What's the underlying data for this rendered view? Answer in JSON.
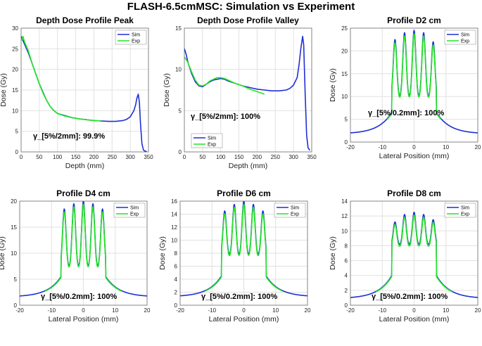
{
  "suptitle": "FLASH-6.5cmMSC: Simulation vs Experiment",
  "colors": {
    "sim": "#1f2fd6",
    "exp": "#22e622"
  },
  "chart_data": [
    {
      "type": "line",
      "title": "Depth Dose Profile Peak",
      "xlabel": "Depth (mm)",
      "ylabel": "Dose (Gy)",
      "xlim": [
        0,
        350
      ],
      "ylim": [
        0,
        30
      ],
      "xticks": [
        0,
        50,
        100,
        150,
        200,
        250,
        300,
        350
      ],
      "yticks": [
        0,
        5,
        10,
        15,
        20,
        25,
        30
      ],
      "legend": "top-right",
      "annotation": "γ_[5%/2mm]: 99.9%",
      "series": [
        {
          "name": "Sim",
          "x": [
            0,
            10,
            20,
            30,
            40,
            50,
            60,
            70,
            80,
            90,
            100,
            120,
            140,
            160,
            180,
            200,
            220,
            240,
            260,
            280,
            290,
            300,
            310,
            315,
            318,
            322,
            325,
            328,
            332,
            336,
            340,
            345
          ],
          "y": [
            28,
            26,
            24,
            21.5,
            19,
            16.5,
            14.5,
            12.5,
            11,
            10,
            9.3,
            8.8,
            8.3,
            8,
            7.8,
            7.6,
            7.5,
            7.4,
            7.4,
            7.6,
            7.9,
            8.5,
            10,
            11.5,
            13,
            14,
            12,
            7,
            2,
            0.5,
            0.2,
            0.1
          ]
        },
        {
          "name": "Exp",
          "x": [
            2,
            5,
            10,
            20,
            30,
            40,
            50,
            60,
            70,
            80,
            90,
            100,
            120,
            140,
            160,
            180,
            200,
            220
          ],
          "y": [
            27,
            28,
            26.5,
            24.5,
            21.5,
            19,
            16.5,
            14.3,
            12.5,
            11,
            10,
            9.3,
            8.7,
            8.3,
            8,
            7.8,
            7.6,
            7.5
          ]
        }
      ]
    },
    {
      "type": "line",
      "title": "Depth Dose Profile Valley",
      "xlabel": "Depth (mm)",
      "ylabel": "Dose (Gy)",
      "xlim": [
        0,
        350
      ],
      "ylim": [
        0,
        15
      ],
      "xticks": [
        0,
        50,
        100,
        150,
        200,
        250,
        300,
        350
      ],
      "yticks": [
        0,
        5,
        10,
        15
      ],
      "legend": "bottom-left",
      "annotation": "γ_[5%/2mm]: 100%",
      "series": [
        {
          "name": "Sim",
          "x": [
            0,
            5,
            10,
            20,
            30,
            40,
            50,
            60,
            70,
            80,
            90,
            100,
            110,
            120,
            140,
            160,
            180,
            200,
            220,
            240,
            260,
            280,
            290,
            300,
            310,
            315,
            320,
            325,
            328,
            332,
            336,
            340,
            345
          ],
          "y": [
            12.5,
            11.8,
            10.8,
            9.5,
            8.5,
            8,
            7.9,
            8.2,
            8.5,
            8.7,
            8.8,
            8.9,
            8.8,
            8.6,
            8.3,
            8,
            7.8,
            7.6,
            7.5,
            7.4,
            7.4,
            7.5,
            7.7,
            8.1,
            9,
            10.5,
            12.5,
            14,
            13,
            7,
            2,
            0.5,
            0.2
          ]
        },
        {
          "name": "Exp",
          "x": [
            0,
            5,
            10,
            20,
            30,
            40,
            50,
            60,
            70,
            80,
            90,
            100,
            110,
            120,
            140,
            160,
            180,
            200,
            220
          ],
          "y": [
            11.5,
            11.2,
            10.8,
            9.7,
            8.7,
            8.1,
            8,
            8.2,
            8.6,
            8.8,
            9,
            9,
            8.9,
            8.7,
            8.3,
            8,
            7.6,
            7.3,
            7
          ]
        }
      ]
    },
    {
      "type": "line",
      "title": "Profile D2 cm",
      "xlabel": "Lateral Position (mm)",
      "ylabel": "Dose (Gy)",
      "xlim": [
        -20,
        20
      ],
      "ylim": [
        0,
        25
      ],
      "xticks": [
        -20,
        -10,
        0,
        10,
        20
      ],
      "yticks": [
        0,
        5,
        10,
        15,
        20,
        25
      ],
      "legend": "top-right",
      "annotation": "γ_[5%/0.2mm]: 100%",
      "profile": {
        "peaks": [
          -6,
          -3,
          0,
          3,
          6
        ],
        "peak_values": [
          22.5,
          24,
          24.5,
          24,
          22
        ],
        "valley": 9.5,
        "shoulder": 6.5,
        "edge": 1.8,
        "exp_extent": [
          -8.5,
          8.5
        ]
      },
      "series": [
        {
          "name": "Sim"
        },
        {
          "name": "Exp"
        }
      ]
    },
    {
      "type": "line",
      "title": "Profile D4 cm",
      "xlabel": "Lateral Position (mm)",
      "ylabel": "Dose (Gy)",
      "xlim": [
        -20,
        20
      ],
      "ylim": [
        0,
        20
      ],
      "xticks": [
        -20,
        -10,
        0,
        10,
        20
      ],
      "yticks": [
        0,
        5,
        10,
        15,
        20
      ],
      "legend": "top-right",
      "annotation": "γ_[5%/0.2mm]: 100%",
      "profile": {
        "peaks": [
          -6,
          -3,
          0,
          3,
          6
        ],
        "peak_values": [
          18.5,
          19.5,
          20,
          19.5,
          18.5
        ],
        "valley": 7,
        "shoulder": 5.5,
        "edge": 1.6,
        "exp_extent": [
          -12,
          12
        ]
      },
      "series": [
        {
          "name": "Sim"
        },
        {
          "name": "Exp"
        }
      ]
    },
    {
      "type": "line",
      "title": "Profile D6 cm",
      "xlabel": "Lateral Position (mm)",
      "ylabel": "Dose (Gy)",
      "xlim": [
        -20,
        20
      ],
      "ylim": [
        0,
        16
      ],
      "xticks": [
        -20,
        -10,
        0,
        10,
        20
      ],
      "yticks": [
        0,
        2,
        4,
        6,
        8,
        10,
        12,
        14,
        16
      ],
      "legend": "top-right",
      "annotation": "γ_[5%/0.2mm]: 100%",
      "profile": {
        "peaks": [
          -6,
          -3,
          0,
          3,
          6
        ],
        "peak_values": [
          14.5,
          15.5,
          16,
          15.5,
          14.5
        ],
        "valley": 7.5,
        "shoulder": 4.5,
        "edge": 1.3,
        "exp_extent": [
          -12,
          12
        ]
      },
      "series": [
        {
          "name": "Sim"
        },
        {
          "name": "Exp"
        }
      ]
    },
    {
      "type": "line",
      "title": "Profile D8 cm",
      "xlabel": "Lateral Position (mm)",
      "ylabel": "Dose (Gy)",
      "xlim": [
        -20,
        20
      ],
      "ylim": [
        0,
        14
      ],
      "xticks": [
        -20,
        -10,
        0,
        10,
        20
      ],
      "yticks": [
        0,
        2,
        4,
        6,
        8,
        10,
        12,
        14
      ],
      "legend": "top-right",
      "annotation": "γ_[5%/0.2mm]: 100%",
      "profile": {
        "peaks": [
          -6,
          -3,
          0,
          3,
          6
        ],
        "peak_values": [
          11.2,
          12.2,
          12.5,
          12.2,
          11.5
        ],
        "valley": 8,
        "shoulder": 4,
        "edge": 0.9,
        "exp_extent": [
          -12,
          12
        ]
      },
      "series": [
        {
          "name": "Sim"
        },
        {
          "name": "Exp"
        }
      ]
    }
  ]
}
